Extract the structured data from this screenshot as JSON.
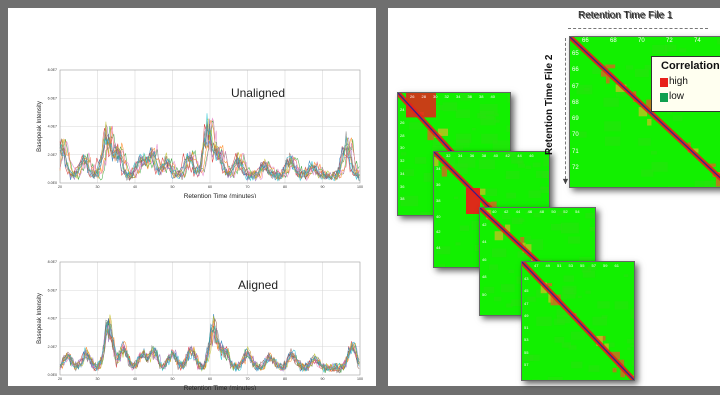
{
  "charts": [
    {
      "title": "Unaligned",
      "ylabel": "Basepeak Intensity",
      "xlabel": "Retention Time (minutes)",
      "x_ticks": [
        "20",
        "30",
        "40",
        "50",
        "60",
        "70",
        "80",
        "90",
        "100"
      ],
      "y_ticks": [
        "8.0E7",
        "6.0E7",
        "4.0E7",
        "2.0E7",
        "0.0E0"
      ]
    },
    {
      "title": "Aligned",
      "ylabel": "Basepeak Intensity",
      "xlabel": "Retention Time (minutes)",
      "x_ticks": [
        "20",
        "30",
        "40",
        "50",
        "60",
        "70",
        "80",
        "90",
        "100"
      ],
      "y_ticks": [
        "8.0E7",
        "6.0E7",
        "4.0E7",
        "2.0E7",
        "0.0E0"
      ]
    }
  ],
  "chart_data": [
    {
      "type": "line",
      "title": "Unaligned",
      "xlabel": "Retention Time (minutes)",
      "ylabel": "Basepeak Intensity",
      "xlim": [
        20,
        100
      ],
      "ylim": [
        0,
        80000000
      ],
      "peaks": [
        [
          21,
          28000000.0
        ],
        [
          27,
          15000000.0
        ],
        [
          33,
          38000000.0
        ],
        [
          36,
          22000000.0
        ],
        [
          42,
          14000000.0
        ],
        [
          45,
          20000000.0
        ],
        [
          49,
          13000000.0
        ],
        [
          55,
          18000000.0
        ],
        [
          60,
          42000000.0
        ],
        [
          63,
          20000000.0
        ],
        [
          68,
          16000000.0
        ],
        [
          75,
          10000000.0
        ],
        [
          82,
          15000000.0
        ],
        [
          88,
          9000000.0
        ],
        [
          97,
          28000000.0
        ]
      ]
    },
    {
      "type": "line",
      "title": "Aligned",
      "xlabel": "Retention Time (minutes)",
      "ylabel": "Basepeak Intensity",
      "xlim": [
        20,
        100
      ],
      "ylim": [
        0,
        80000000
      ],
      "peaks": [
        [
          22,
          11000000.0
        ],
        [
          27,
          13000000.0
        ],
        [
          33,
          38000000.0
        ],
        [
          37,
          18000000.0
        ],
        [
          42,
          12000000.0
        ],
        [
          45,
          15000000.0
        ],
        [
          50,
          13000000.0
        ],
        [
          55,
          16000000.0
        ],
        [
          61,
          37000000.0
        ],
        [
          64,
          15000000.0
        ],
        [
          70,
          13000000.0
        ],
        [
          76,
          10000000.0
        ],
        [
          82,
          12000000.0
        ],
        [
          88,
          8000000.0
        ],
        [
          98,
          20000000.0
        ]
      ]
    }
  ],
  "heatmap": {
    "top_label": "Retention Time File 1",
    "side_label": "Retention Time File 2",
    "legend": {
      "title": "Correlation",
      "high": "high",
      "low": "low"
    },
    "colors": {
      "high": "#e8201a",
      "low": "#12f000",
      "diag": "#3a1f8a",
      "legend_low": "#10a050"
    },
    "tiles": [
      {
        "xticks": [
          "26",
          "28",
          "30",
          "32",
          "34",
          "36",
          "38",
          "40"
        ],
        "yticks": [
          "24",
          "26",
          "28",
          "30",
          "32",
          "34",
          "36",
          "38"
        ]
      },
      {
        "xticks": [
          "32",
          "34",
          "36",
          "38",
          "40",
          "42",
          "44",
          "46"
        ],
        "yticks": [
          "34",
          "36",
          "38",
          "40",
          "42",
          "44"
        ]
      },
      {
        "xticks": [
          "40",
          "42",
          "44",
          "46",
          "48",
          "50",
          "52",
          "54"
        ],
        "yticks": [
          "42",
          "44",
          "46",
          "48",
          "50"
        ]
      },
      {
        "xticks": [
          "47",
          "49",
          "51",
          "53",
          "55",
          "57",
          "59",
          "61"
        ],
        "yticks": [
          "43",
          "45",
          "47",
          "49",
          "51",
          "53",
          "55",
          "57"
        ]
      },
      {
        "xticks": [
          "66",
          "68",
          "70",
          "72",
          "74"
        ],
        "yticks": [
          "65",
          "66",
          "67",
          "68",
          "69",
          "70",
          "71",
          "72"
        ]
      }
    ]
  }
}
